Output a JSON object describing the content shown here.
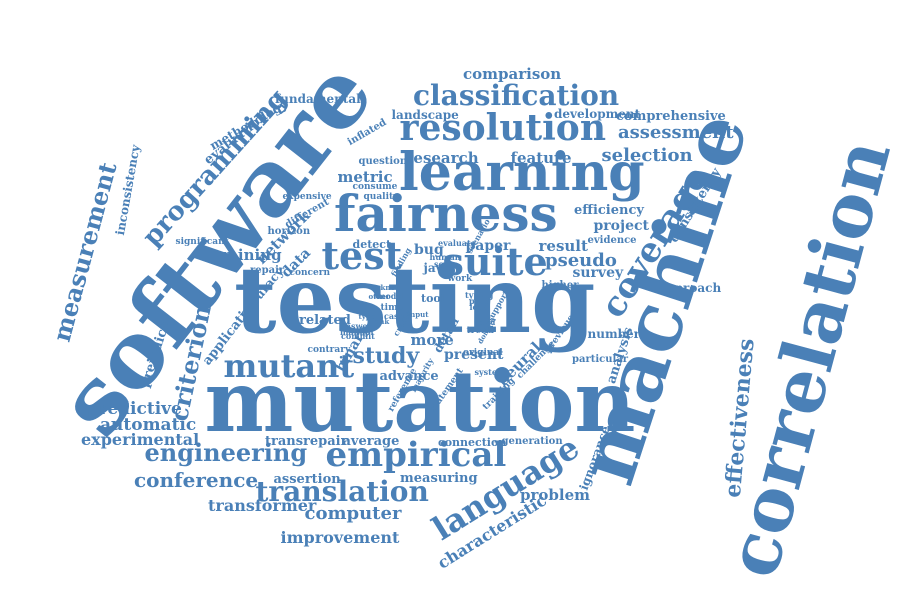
{
  "cloud": {
    "color": "#4a80b7",
    "words": [
      {
        "text": "software",
        "orient": "rot-ccw"
      },
      {
        "text": "testing",
        "orient": "horizontal"
      },
      {
        "text": "mutation",
        "orient": "horizontal"
      },
      {
        "text": "machine",
        "orient": "rot-ccw"
      },
      {
        "text": "correlation",
        "orient": "rot-ccw"
      },
      {
        "text": "learning",
        "orient": "horizontal"
      },
      {
        "text": "fairness",
        "orient": "horizontal"
      },
      {
        "text": "resolution",
        "orient": "horizontal"
      },
      {
        "text": "classification",
        "orient": "horizontal"
      },
      {
        "text": "coverage",
        "orient": "rot-ccw"
      },
      {
        "text": "test",
        "orient": "horizontal"
      },
      {
        "text": "suite",
        "orient": "horizontal"
      },
      {
        "text": "mutant",
        "orient": "horizontal"
      },
      {
        "text": "empirical",
        "orient": "horizontal"
      },
      {
        "text": "language",
        "orient": "rot-ccw"
      },
      {
        "text": "translation",
        "orient": "horizontal"
      },
      {
        "text": "engineering",
        "orient": "horizontal"
      },
      {
        "text": "programming",
        "orient": "rot-ccw"
      },
      {
        "text": "measurement",
        "orient": "rot-ccw"
      },
      {
        "text": "criterion",
        "orient": "rot-ccw"
      },
      {
        "text": "effectiveness",
        "orient": "rot-ccw"
      },
      {
        "text": "study",
        "orient": "horizontal"
      },
      {
        "text": "conference",
        "orient": "horizontal"
      },
      {
        "text": "computer",
        "orient": "horizontal"
      },
      {
        "text": "transformer",
        "orient": "horizontal"
      },
      {
        "text": "improvement",
        "orient": "horizontal"
      },
      {
        "text": "characteristic",
        "orient": "rot-ccw"
      },
      {
        "text": "problem",
        "orient": "horizontal"
      },
      {
        "text": "predictive",
        "orient": "horizontal"
      },
      {
        "text": "automatic",
        "orient": "horizontal"
      },
      {
        "text": "experimental",
        "orient": "horizontal"
      },
      {
        "text": "assessment",
        "orient": "horizontal"
      },
      {
        "text": "selection",
        "orient": "horizontal"
      },
      {
        "text": "research",
        "orient": "horizontal"
      },
      {
        "text": "feature",
        "orient": "horizontal"
      },
      {
        "text": "comparison",
        "orient": "horizontal"
      },
      {
        "text": "comprehensive",
        "orient": "horizontal"
      },
      {
        "text": "landscape",
        "orient": "horizontal"
      },
      {
        "text": "development",
        "orient": "horizontal"
      },
      {
        "text": "fundamental",
        "orient": "horizontal"
      },
      {
        "text": "metric",
        "orient": "horizontal"
      },
      {
        "text": "project",
        "orient": "horizontal"
      },
      {
        "text": "efficiency",
        "orient": "horizontal"
      },
      {
        "text": "consistency",
        "orient": "rot-ccw"
      },
      {
        "text": "pseudo",
        "orient": "horizontal"
      },
      {
        "text": "result",
        "orient": "horizontal"
      },
      {
        "text": "survey",
        "orient": "horizontal"
      },
      {
        "text": "paper",
        "orient": "horizontal"
      },
      {
        "text": "bug",
        "orient": "horizontal"
      },
      {
        "text": "java",
        "orient": "horizontal"
      },
      {
        "text": "network",
        "orient": "rot-ccw"
      },
      {
        "text": "data",
        "orient": "rot-ccw"
      },
      {
        "text": "mining",
        "orient": "horizontal"
      },
      {
        "text": "evaluation",
        "orient": "rot-ccw"
      },
      {
        "text": "methodology",
        "orient": "rot-ccw"
      },
      {
        "text": "inconsistency",
        "orient": "rot-ccw"
      },
      {
        "text": "prejudice",
        "orient": "rot-ccw"
      },
      {
        "text": "application",
        "orient": "rot-ccw"
      },
      {
        "text": "accuracy",
        "orient": "rot-ccw"
      },
      {
        "text": "related",
        "orient": "horizontal"
      },
      {
        "text": "binary",
        "orient": "rot-ccw"
      },
      {
        "text": "advance",
        "orient": "horizontal"
      },
      {
        "text": "present",
        "orient": "horizontal"
      },
      {
        "text": "neural",
        "orient": "rot-ccw"
      },
      {
        "text": "transrepair",
        "orient": "horizontal"
      },
      {
        "text": "average",
        "orient": "horizontal"
      },
      {
        "text": "connection",
        "orient": "horizontal"
      },
      {
        "text": "generation",
        "orient": "horizontal"
      },
      {
        "text": "ignorance",
        "orient": "rot-ccw"
      },
      {
        "text": "assertion",
        "orient": "horizontal"
      },
      {
        "text": "measuring",
        "orient": "horizontal"
      },
      {
        "text": "analysis",
        "orient": "rot-ccw"
      },
      {
        "text": "approach",
        "orient": "horizontal"
      },
      {
        "text": "number",
        "orient": "horizontal"
      },
      {
        "text": "particular",
        "orient": "horizontal"
      },
      {
        "text": "evidence",
        "orient": "horizontal"
      },
      {
        "text": "higher",
        "orient": "horizontal"
      },
      {
        "text": "tool",
        "orient": "horizontal"
      },
      {
        "text": "more",
        "orient": "horizontal"
      },
      {
        "text": "detail",
        "orient": "rot-ccw"
      },
      {
        "text": "detect",
        "orient": "horizontal"
      },
      {
        "text": "question",
        "orient": "horizontal"
      },
      {
        "text": "consume",
        "orient": "horizontal"
      },
      {
        "text": "quality",
        "orient": "horizontal"
      },
      {
        "text": "inflated",
        "orient": "rot-ccw"
      },
      {
        "text": "expensive",
        "orient": "horizontal"
      },
      {
        "text": "different",
        "orient": "rot-ccw"
      },
      {
        "text": "horizon",
        "orient": "horizontal"
      },
      {
        "text": "significant",
        "orient": "horizontal"
      },
      {
        "text": "repair",
        "orient": "horizontal"
      },
      {
        "text": "concern",
        "orient": "horizontal"
      },
      {
        "text": "contrary",
        "orient": "horizontal"
      },
      {
        "text": "original",
        "orient": "horizontal"
      },
      {
        "text": "challenge",
        "orient": "rot-ccw"
      },
      {
        "text": "previous",
        "orient": "rot-ccw"
      },
      {
        "text": "trend",
        "orient": "horizontal"
      },
      {
        "text": "system",
        "orient": "horizontal"
      },
      {
        "text": "statement",
        "orient": "rot-ccw"
      },
      {
        "text": "reference",
        "orient": "rot-ccw"
      },
      {
        "text": "majority",
        "orient": "rot-ccw"
      },
      {
        "text": "commit",
        "orient": "horizontal"
      },
      {
        "text": "model",
        "orient": "horizontal"
      },
      {
        "text": "time",
        "orient": "horizontal"
      },
      {
        "text": "case",
        "orient": "horizontal"
      },
      {
        "text": "support",
        "orient": "rot-ccw"
      },
      {
        "text": "score",
        "orient": "horizontal"
      },
      {
        "text": "human",
        "orient": "horizontal"
      },
      {
        "text": "answer",
        "orient": "horizontal"
      },
      {
        "text": "manual",
        "orient": "horizontal"
      },
      {
        "text": "work",
        "orient": "horizontal"
      },
      {
        "text": "evaluate",
        "orient": "horizontal"
      },
      {
        "text": "scenario",
        "orient": "rot-ccw"
      },
      {
        "text": "finding",
        "orient": "rot-ccw"
      },
      {
        "text": "typing",
        "orient": "horizontal"
      },
      {
        "text": "proc",
        "orient": "horizontal"
      },
      {
        "text": "training",
        "orient": "rot-ccw"
      },
      {
        "text": "create",
        "orient": "rot-ccw"
      },
      {
        "text": "lead",
        "orient": "horizontal"
      },
      {
        "text": "other",
        "orient": "horizontal"
      },
      {
        "text": "type",
        "orient": "horizontal"
      },
      {
        "text": "know",
        "orient": "horizontal"
      },
      {
        "text": "domain",
        "orient": "rot-ccw"
      },
      {
        "text": "input",
        "orient": "horizontal"
      },
      {
        "text": "level",
        "orient": "horizontal"
      },
      {
        "text": "rank",
        "orient": "horizontal"
      }
    ]
  }
}
